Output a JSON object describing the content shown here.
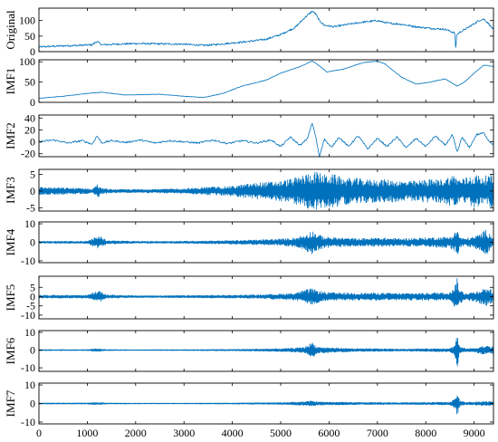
{
  "chart_data": {
    "type": "line",
    "series_color": "#0072BD",
    "x_ticks": [
      0,
      1000,
      2000,
      3000,
      4000,
      5000,
      6000,
      7000,
      8000,
      9000
    ],
    "xlim": [
      0,
      9400
    ],
    "panels": [
      {
        "name": "Original",
        "ylim": [
          0,
          140
        ],
        "yticks": [
          0,
          50,
          100
        ],
        "x": [
          0,
          400,
          800,
          1100,
          1200,
          1300,
          1600,
          2000,
          2500,
          3000,
          3400,
          3600,
          4000,
          4300,
          4700,
          5000,
          5300,
          5500,
          5650,
          5720,
          5800,
          5900,
          6100,
          6400,
          6700,
          7000,
          7200,
          7500,
          7800,
          8100,
          8400,
          8600,
          8620,
          8640,
          8700,
          8900,
          9100,
          9200,
          9300,
          9400
        ],
        "y": [
          15,
          18,
          20,
          22,
          33,
          22,
          24,
          26,
          25,
          24,
          20,
          22,
          28,
          32,
          40,
          55,
          78,
          110,
          130,
          122,
          100,
          85,
          80,
          88,
          95,
          100,
          92,
          88,
          80,
          75,
          72,
          60,
          5,
          55,
          62,
          80,
          100,
          105,
          90,
          70
        ]
      },
      {
        "name": "IMF1",
        "ylim": [
          0,
          105
        ],
        "yticks": [
          0,
          50,
          100
        ],
        "x": [
          0,
          500,
          1000,
          1300,
          1800,
          2500,
          3000,
          3400,
          3800,
          4200,
          4700,
          5000,
          5400,
          5650,
          5800,
          5950,
          6300,
          6700,
          7000,
          7150,
          7500,
          7800,
          8100,
          8400,
          8650,
          8800,
          9000,
          9200,
          9400
        ],
        "y": [
          10,
          15,
          22,
          25,
          18,
          20,
          15,
          12,
          22,
          40,
          55,
          72,
          88,
          102,
          90,
          75,
          82,
          98,
          102,
          95,
          62,
          45,
          50,
          58,
          40,
          50,
          72,
          92,
          88
        ]
      },
      {
        "name": "IMF2",
        "ylim": [
          -25,
          45
        ],
        "yticks": [
          -20,
          0,
          20,
          40
        ],
        "x": [
          0,
          300,
          600,
          900,
          1100,
          1200,
          1300,
          1500,
          1800,
          2100,
          2400,
          2700,
          3000,
          3300,
          3600,
          3900,
          4200,
          4500,
          4800,
          5000,
          5200,
          5400,
          5550,
          5650,
          5720,
          5800,
          5900,
          6050,
          6200,
          6400,
          6600,
          6800,
          7000,
          7200,
          7400,
          7600,
          7800,
          8000,
          8200,
          8400,
          8550,
          8650,
          8750,
          8900,
          9050,
          9200,
          9300,
          9400
        ],
        "y": [
          0,
          3,
          -2,
          2,
          -4,
          10,
          -2,
          2,
          -1,
          3,
          -2,
          2,
          0,
          -2,
          3,
          -3,
          2,
          -2,
          3,
          -8,
          8,
          -6,
          5,
          32,
          10,
          -25,
          5,
          -10,
          8,
          -8,
          10,
          -12,
          6,
          -8,
          8,
          -10,
          6,
          -8,
          10,
          -6,
          12,
          -18,
          8,
          -10,
          12,
          15,
          2,
          -5
        ]
      },
      {
        "name": "IMF3",
        "ylim": [
          -6,
          6.5
        ],
        "yticks": [
          -5,
          0,
          5
        ],
        "x": [
          0,
          1000,
          1100,
          1200,
          1300,
          1500,
          2000,
          2500,
          3000,
          3500,
          4000,
          4500,
          5000,
          5300,
          5500,
          5700,
          5900,
          6100,
          6300,
          6500,
          6800,
          7200,
          7500,
          7800,
          8000,
          8300,
          8600,
          8700,
          9000,
          9200,
          9400
        ],
        "y": [
          1.2,
          0.8,
          0.5,
          2.2,
          0.8,
          0.5,
          0.5,
          0.6,
          0.7,
          1.2,
          1.5,
          2.5,
          3,
          4,
          5,
          6,
          5,
          5,
          4,
          4,
          3.5,
          3.5,
          3,
          3,
          3.5,
          3.5,
          5,
          3.5,
          5,
          4.5,
          5
        ]
      },
      {
        "name": "IMF4",
        "ylim": [
          -11,
          11
        ],
        "yticks": [
          -10,
          0,
          10
        ],
        "x": [
          0,
          1000,
          1150,
          1250,
          1400,
          2000,
          3000,
          4000,
          4500,
          5000,
          5300,
          5500,
          5650,
          5750,
          5900,
          6200,
          6600,
          7000,
          7500,
          8000,
          8500,
          8600,
          8650,
          8700,
          8800,
          9000,
          9150,
          9250,
          9400
        ],
        "y": [
          0.5,
          0.6,
          2.5,
          3.5,
          1,
          0.5,
          0.6,
          1,
          1.3,
          1.8,
          2.5,
          4,
          6.5,
          4.5,
          3,
          2.5,
          2,
          2.5,
          2,
          2.5,
          3,
          5,
          8,
          3,
          2,
          3,
          5,
          7,
          3
        ]
      },
      {
        "name": "IMF5",
        "ylim": [
          -12,
          11
        ],
        "yticks": [
          -10,
          -5,
          0,
          5
        ],
        "x": [
          0,
          1000,
          1150,
          1250,
          1400,
          2000,
          3000,
          4000,
          4500,
          5000,
          5300,
          5500,
          5650,
          5750,
          5900,
          6200,
          6600,
          7000,
          7500,
          8000,
          8500,
          8600,
          8650,
          8700,
          8800,
          9000,
          9150,
          9250,
          9400
        ],
        "y": [
          0.8,
          0.8,
          2.5,
          3,
          1,
          0.5,
          0.6,
          0.8,
          1,
          1.5,
          2,
          3.5,
          4.5,
          3.5,
          2.5,
          2,
          2,
          2,
          1.8,
          2,
          2.5,
          6,
          10,
          4,
          2,
          2.5,
          4,
          5,
          3
        ]
      },
      {
        "name": "IMF6",
        "ylim": [
          -12,
          11
        ],
        "yticks": [
          -10,
          0,
          10
        ],
        "x": [
          0,
          1000,
          1150,
          1250,
          1400,
          2000,
          3000,
          4000,
          5000,
          5300,
          5500,
          5650,
          5750,
          5900,
          6200,
          6600,
          7000,
          7500,
          8000,
          8500,
          8600,
          8650,
          8700,
          8800,
          9000,
          9200,
          9400
        ],
        "y": [
          0.3,
          0.3,
          0.8,
          0.8,
          0.3,
          0.2,
          0.3,
          0.4,
          0.8,
          1.2,
          1.8,
          4.5,
          2,
          1.5,
          1.2,
          0.8,
          0.8,
          0.6,
          0.8,
          1,
          3,
          10,
          2,
          1,
          1,
          2.5,
          2
        ]
      },
      {
        "name": "IMF7",
        "ylim": [
          -11,
          11
        ],
        "yticks": [
          -10,
          0,
          10
        ],
        "x": [
          0,
          1000,
          1150,
          1250,
          1400,
          2000,
          3000,
          4000,
          5000,
          5300,
          5500,
          5650,
          5750,
          5900,
          6200,
          6600,
          7000,
          7500,
          8000,
          8500,
          8600,
          8650,
          8700,
          8800,
          9000,
          9200,
          9400
        ],
        "y": [
          0.3,
          0.3,
          0.6,
          0.6,
          0.3,
          0.2,
          0.2,
          0.3,
          0.5,
          0.8,
          1,
          1.5,
          1,
          0.8,
          0.8,
          0.6,
          0.6,
          0.5,
          0.6,
          0.8,
          2.5,
          7,
          1.5,
          0.8,
          0.8,
          1.2,
          1
        ]
      }
    ]
  }
}
